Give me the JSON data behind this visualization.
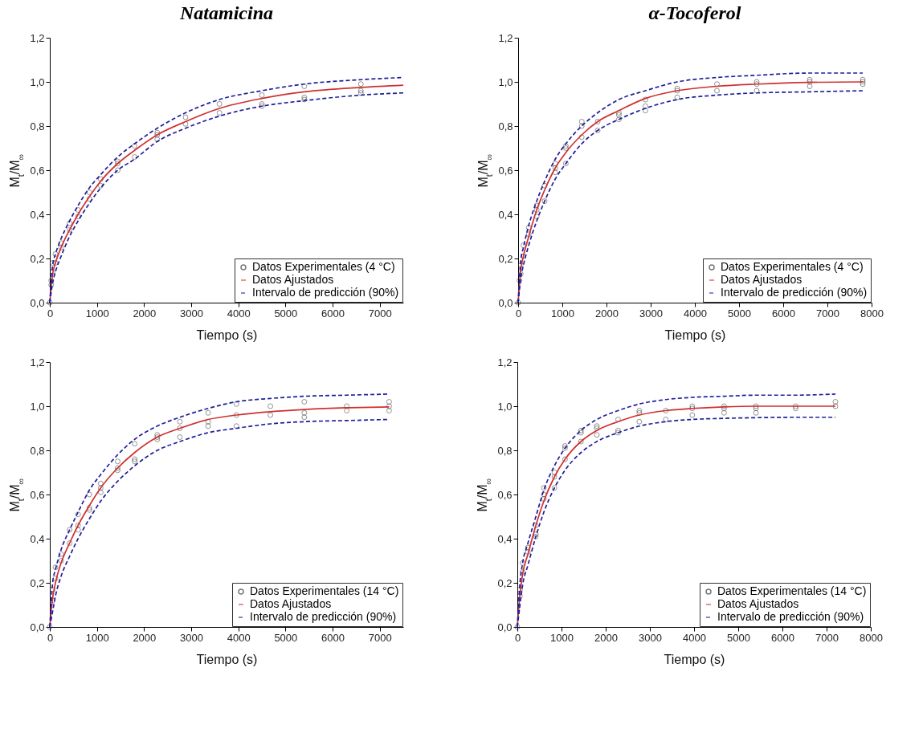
{
  "chart_data": [
    {
      "type": "line",
      "title": "Natamicina",
      "xlabel": "Tiempo (s)",
      "ylabel": "M$_{t}$/M$_{∞}$",
      "xlim": [
        0,
        7500
      ],
      "xticks": [
        0,
        1000,
        2000,
        3000,
        4000,
        5000,
        6000,
        7000
      ],
      "ylim": [
        0,
        1.2
      ],
      "yticks": [
        {
          "value": 0,
          "label": "0,0"
        },
        {
          "value": 0.2,
          "label": "0,2"
        },
        {
          "value": 0.4,
          "label": "0,4"
        },
        {
          "value": 0.6,
          "label": "0,6"
        },
        {
          "value": 0.8,
          "label": "0,8"
        },
        {
          "value": 1.0,
          "label": "1,0"
        },
        {
          "value": 1.2,
          "label": "1,2"
        }
      ],
      "legend": "bottom right",
      "series": [
        {
          "name": "Datos Experimentales (4 °C)",
          "type": "scatter",
          "marker": "circle",
          "color": "#404040",
          "x": [
            0,
            30,
            30,
            60,
            60,
            120,
            120,
            240,
            240,
            420,
            420,
            600,
            600,
            840,
            840,
            1080,
            1080,
            1440,
            1440,
            1440,
            1800,
            1800,
            2280,
            2280,
            2280,
            2880,
            2880,
            3600,
            3600,
            4500,
            4500,
            4500,
            5400,
            5400,
            5400,
            6600,
            6600,
            6600
          ],
          "values": [
            0,
            0.1,
            0.08,
            0.18,
            0.14,
            0.22,
            0.18,
            0.27,
            0.25,
            0.36,
            0.33,
            0.42,
            0.39,
            0.5,
            0.47,
            0.56,
            0.53,
            0.64,
            0.63,
            0.6,
            0.71,
            0.66,
            0.77,
            0.76,
            0.74,
            0.84,
            0.81,
            0.9,
            0.86,
            0.94,
            0.9,
            0.89,
            0.98,
            0.93,
            0.92,
            0.99,
            0.96,
            0.95
          ]
        },
        {
          "name": "Datos Ajustados",
          "type": "line",
          "color": "#d03030",
          "line_style": "solid",
          "x": [
            0,
            60,
            120,
            240,
            420,
            600,
            840,
            1080,
            1440,
            1800,
            2280,
            2880,
            3600,
            4500,
            5400,
            6600,
            7500
          ],
          "values": [
            0,
            0.13,
            0.18,
            0.25,
            0.33,
            0.4,
            0.48,
            0.55,
            0.63,
            0.69,
            0.76,
            0.82,
            0.88,
            0.925,
            0.955,
            0.975,
            0.985
          ]
        },
        {
          "name": "Intervalo de predicción (90%)",
          "type": "line",
          "color": "#1f1f99",
          "line_style": "dashed",
          "x": [
            0,
            60,
            120,
            240,
            420,
            600,
            840,
            1080,
            1440,
            1800,
            2280,
            2880,
            3600,
            4500,
            5400,
            6600,
            7500
          ],
          "values": [
            0,
            0.17,
            0.22,
            0.29,
            0.37,
            0.44,
            0.52,
            0.58,
            0.66,
            0.72,
            0.79,
            0.86,
            0.92,
            0.96,
            0.99,
            1.01,
            1.02
          ]
        },
        {
          "type": "line",
          "color": "#1f1f99",
          "line_style": "dashed",
          "x": [
            0,
            60,
            120,
            240,
            420,
            600,
            840,
            1080,
            1440,
            1800,
            2280,
            2880,
            3600,
            4500,
            5400,
            6600,
            7500
          ],
          "values": [
            0,
            0.09,
            0.14,
            0.21,
            0.3,
            0.37,
            0.45,
            0.52,
            0.6,
            0.65,
            0.73,
            0.79,
            0.845,
            0.89,
            0.915,
            0.94,
            0.95
          ]
        }
      ]
    },
    {
      "type": "line",
      "title": "α-Tocoferol",
      "xlabel": "Tiempo (s)",
      "ylabel": "M$_{t}$/M$_{∞}$",
      "xlim": [
        0,
        8000
      ],
      "xticks": [
        0,
        1000,
        2000,
        3000,
        4000,
        5000,
        6000,
        7000,
        8000
      ],
      "ylim": [
        0,
        1.2
      ],
      "yticks": [
        {
          "value": 0,
          "label": "0,0"
        },
        {
          "value": 0.2,
          "label": "0,2"
        },
        {
          "value": 0.4,
          "label": "0,4"
        },
        {
          "value": 0.6,
          "label": "0,6"
        },
        {
          "value": 0.8,
          "label": "0,8"
        },
        {
          "value": 1.0,
          "label": "1,0"
        },
        {
          "value": 1.2,
          "label": "1,2"
        }
      ],
      "legend": "bottom right",
      "series": [
        {
          "name": "Datos Experimentales (4 °C)",
          "type": "scatter",
          "marker": "circle",
          "color": "#404040",
          "x": [
            0,
            30,
            60,
            60,
            120,
            120,
            240,
            240,
            420,
            420,
            420,
            600,
            600,
            840,
            840,
            840,
            1080,
            1080,
            1080,
            1440,
            1440,
            1440,
            1800,
            1800,
            2280,
            2280,
            2280,
            2880,
            2880,
            2880,
            3600,
            3600,
            3600,
            4500,
            4500,
            5400,
            5400,
            5400,
            6600,
            6600,
            6600,
            7800,
            7800,
            7800
          ],
          "values": [
            0,
            0.1,
            0.17,
            0.13,
            0.26,
            0.21,
            0.34,
            0.31,
            0.44,
            0.42,
            0.39,
            0.53,
            0.46,
            0.63,
            0.61,
            0.59,
            0.71,
            0.7,
            0.63,
            0.82,
            0.8,
            0.75,
            0.82,
            0.78,
            0.86,
            0.85,
            0.83,
            0.92,
            0.89,
            0.87,
            0.97,
            0.96,
            0.93,
            0.99,
            0.96,
            1.0,
            0.99,
            0.96,
            1.01,
            1.0,
            0.98,
            1.01,
            1.0,
            0.99
          ]
        },
        {
          "name": "Datos Ajustados",
          "type": "line",
          "color": "#d03030",
          "line_style": "solid",
          "x": [
            0,
            60,
            120,
            240,
            420,
            600,
            840,
            1080,
            1440,
            1800,
            2280,
            2880,
            3600,
            4500,
            5400,
            6600,
            7800
          ],
          "values": [
            0,
            0.15,
            0.21,
            0.3,
            0.42,
            0.51,
            0.61,
            0.68,
            0.76,
            0.82,
            0.87,
            0.925,
            0.96,
            0.98,
            0.99,
            0.998,
            1.0
          ]
        },
        {
          "name": "Intervalo de predicción (90%)",
          "type": "line",
          "color": "#1f1f99",
          "line_style": "dashed",
          "x": [
            0,
            60,
            120,
            240,
            420,
            600,
            840,
            1080,
            1440,
            1800,
            2280,
            2880,
            3600,
            4500,
            5400,
            6600,
            7800
          ],
          "values": [
            0,
            0.19,
            0.25,
            0.35,
            0.46,
            0.55,
            0.65,
            0.72,
            0.8,
            0.86,
            0.92,
            0.96,
            1.0,
            1.02,
            1.03,
            1.04,
            1.04
          ]
        },
        {
          "type": "line",
          "color": "#1f1f99",
          "line_style": "dashed",
          "x": [
            0,
            60,
            120,
            240,
            420,
            600,
            840,
            1080,
            1440,
            1800,
            2280,
            2880,
            3600,
            4500,
            5400,
            6600,
            7800
          ],
          "values": [
            0,
            0.11,
            0.17,
            0.26,
            0.37,
            0.46,
            0.56,
            0.63,
            0.72,
            0.78,
            0.83,
            0.88,
            0.92,
            0.94,
            0.95,
            0.955,
            0.96
          ]
        }
      ]
    },
    {
      "type": "line",
      "xlabel": "Tiempo (s)",
      "ylabel": "M$_{t}$/M$_{∞}$",
      "xlim": [
        0,
        7500
      ],
      "xticks": [
        0,
        1000,
        2000,
        3000,
        4000,
        5000,
        6000,
        7000
      ],
      "ylim": [
        0,
        1.2
      ],
      "yticks": [
        {
          "value": 0,
          "label": "0,0"
        },
        {
          "value": 0.2,
          "label": "0,2"
        },
        {
          "value": 0.4,
          "label": "0,4"
        },
        {
          "value": 0.6,
          "label": "0,6"
        },
        {
          "value": 0.8,
          "label": "0,8"
        },
        {
          "value": 1.0,
          "label": "1,0"
        },
        {
          "value": 1.2,
          "label": "1,2"
        }
      ],
      "legend": "bottom right",
      "series": [
        {
          "name": "Datos Experimentales (14 °C)",
          "type": "scatter",
          "marker": "circle",
          "color": "#404040",
          "x": [
            0,
            60,
            60,
            120,
            120,
            240,
            240,
            420,
            420,
            600,
            600,
            600,
            840,
            840,
            840,
            1080,
            1080,
            1080,
            1440,
            1440,
            1440,
            1800,
            1800,
            1800,
            2280,
            2280,
            2280,
            2760,
            2760,
            2760,
            3360,
            3360,
            3360,
            3960,
            3960,
            3960,
            4680,
            4680,
            5400,
            5400,
            5400,
            6300,
            6300,
            7200,
            7200,
            7200
          ],
          "values": [
            0,
            0.17,
            0.12,
            0.27,
            0.22,
            0.33,
            0.3,
            0.44,
            0.38,
            0.51,
            0.46,
            0.44,
            0.6,
            0.54,
            0.53,
            0.65,
            0.63,
            0.61,
            0.75,
            0.72,
            0.71,
            0.83,
            0.76,
            0.75,
            0.87,
            0.86,
            0.85,
            0.93,
            0.9,
            0.86,
            0.97,
            0.93,
            0.91,
            1.01,
            0.96,
            0.91,
            1.0,
            0.96,
            1.02,
            0.97,
            0.95,
            1.0,
            0.98,
            1.02,
            1.0,
            0.98
          ]
        },
        {
          "name": "Datos Ajustados",
          "type": "line",
          "color": "#d03030",
          "line_style": "solid",
          "x": [
            0,
            60,
            120,
            240,
            420,
            600,
            840,
            1080,
            1440,
            1800,
            2280,
            2760,
            3360,
            3960,
            4680,
            5400,
            6300,
            7200
          ],
          "values": [
            0,
            0.13,
            0.2,
            0.29,
            0.38,
            0.46,
            0.55,
            0.63,
            0.72,
            0.79,
            0.86,
            0.9,
            0.94,
            0.96,
            0.975,
            0.985,
            0.993,
            0.997
          ]
        },
        {
          "name": "Intervalo de predicción (90%)",
          "type": "line",
          "color": "#1f1f99",
          "line_style": "dashed",
          "x": [
            0,
            60,
            120,
            240,
            420,
            600,
            840,
            1080,
            1440,
            1800,
            2280,
            2760,
            3360,
            3960,
            4680,
            5400,
            6300,
            7200
          ],
          "values": [
            0,
            0.2,
            0.26,
            0.35,
            0.44,
            0.52,
            0.62,
            0.69,
            0.78,
            0.85,
            0.91,
            0.95,
            0.99,
            1.02,
            1.035,
            1.045,
            1.05,
            1.055
          ]
        },
        {
          "type": "line",
          "color": "#1f1f99",
          "line_style": "dashed",
          "x": [
            0,
            60,
            120,
            240,
            420,
            600,
            840,
            1080,
            1440,
            1800,
            2280,
            2760,
            3360,
            3960,
            4680,
            5400,
            6300,
            7200
          ],
          "values": [
            0,
            0.07,
            0.14,
            0.23,
            0.32,
            0.4,
            0.49,
            0.57,
            0.66,
            0.73,
            0.8,
            0.84,
            0.88,
            0.9,
            0.92,
            0.93,
            0.935,
            0.94
          ]
        }
      ]
    },
    {
      "type": "line",
      "xlabel": "Tiempo (s)",
      "ylabel": "M$_{t}$/M$_{∞}$",
      "xlim": [
        0,
        8000
      ],
      "xticks": [
        0,
        1000,
        2000,
        3000,
        4000,
        5000,
        6000,
        7000,
        8000
      ],
      "ylim": [
        0,
        1.2
      ],
      "yticks": [
        {
          "value": 0,
          "label": "0,0"
        },
        {
          "value": 0.2,
          "label": "0,2"
        },
        {
          "value": 0.4,
          "label": "0,4"
        },
        {
          "value": 0.6,
          "label": "0,6"
        },
        {
          "value": 0.8,
          "label": "0,8"
        },
        {
          "value": 1.0,
          "label": "1,0"
        },
        {
          "value": 1.2,
          "label": "1,2"
        }
      ],
      "legend": "bottom right",
      "series": [
        {
          "name": "Datos Experimentales (14 °C)",
          "type": "scatter",
          "marker": "circle",
          "color": "#404040",
          "x": [
            0,
            60,
            60,
            120,
            120,
            240,
            240,
            420,
            420,
            420,
            600,
            600,
            600,
            840,
            840,
            840,
            1080,
            1080,
            1080,
            1440,
            1440,
            1440,
            1800,
            1800,
            1800,
            2280,
            2280,
            2280,
            2760,
            2760,
            2760,
            3360,
            3360,
            3960,
            3960,
            3960,
            4680,
            4680,
            4680,
            5400,
            5400,
            5400,
            6300,
            6300,
            7200,
            7200
          ],
          "values": [
            0,
            0.17,
            0.14,
            0.29,
            0.25,
            0.36,
            0.34,
            0.46,
            0.42,
            0.41,
            0.63,
            0.6,
            0.58,
            0.7,
            0.68,
            0.63,
            0.82,
            0.81,
            0.76,
            0.89,
            0.88,
            0.84,
            0.91,
            0.9,
            0.87,
            0.94,
            0.89,
            0.88,
            0.98,
            0.97,
            0.93,
            0.98,
            0.94,
            1.0,
            0.99,
            0.96,
            1.0,
            0.99,
            0.97,
            1.0,
            0.99,
            0.97,
            1.0,
            0.99,
            1.02,
            1.0
          ]
        },
        {
          "name": "Datos Ajustados",
          "type": "line",
          "color": "#d03030",
          "line_style": "solid",
          "x": [
            0,
            60,
            120,
            240,
            420,
            600,
            840,
            1080,
            1440,
            1800,
            2280,
            2760,
            3360,
            3960,
            4680,
            5400,
            6300,
            7200
          ],
          "values": [
            0,
            0.15,
            0.24,
            0.33,
            0.46,
            0.57,
            0.68,
            0.76,
            0.84,
            0.89,
            0.93,
            0.96,
            0.98,
            0.99,
            0.997,
            1.0,
            1.0,
            1.0
          ]
        },
        {
          "name": "Intervalo de predicción (90%)",
          "type": "line",
          "color": "#1f1f99",
          "line_style": "dashed",
          "x": [
            0,
            60,
            120,
            240,
            420,
            600,
            840,
            1080,
            1440,
            1800,
            2280,
            2760,
            3360,
            3960,
            4680,
            5400,
            6300,
            7200
          ],
          "values": [
            0,
            0.2,
            0.29,
            0.38,
            0.5,
            0.62,
            0.73,
            0.81,
            0.89,
            0.94,
            0.98,
            1.01,
            1.03,
            1.04,
            1.045,
            1.05,
            1.05,
            1.055
          ]
        },
        {
          "type": "line",
          "color": "#1f1f99",
          "line_style": "dashed",
          "x": [
            0,
            60,
            120,
            240,
            420,
            600,
            840,
            1080,
            1440,
            1800,
            2280,
            2760,
            3360,
            3960,
            4680,
            5400,
            6300,
            7200
          ],
          "values": [
            0,
            0.1,
            0.19,
            0.28,
            0.41,
            0.52,
            0.63,
            0.71,
            0.79,
            0.84,
            0.88,
            0.91,
            0.93,
            0.94,
            0.945,
            0.948,
            0.95,
            0.95
          ]
        }
      ]
    }
  ]
}
